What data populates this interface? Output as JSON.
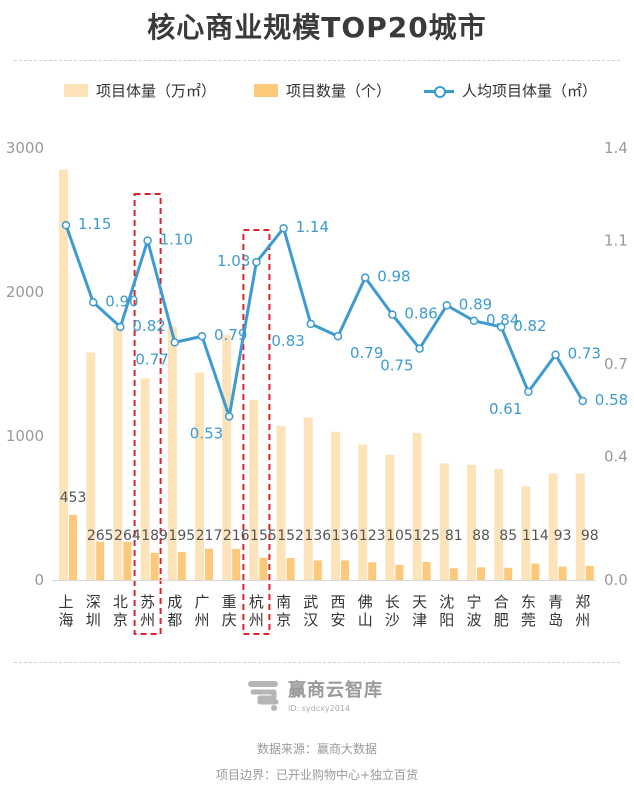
{
  "title": "核心商业规模TOP20城市",
  "legend": {
    "area_label": "项目体量（万㎡）",
    "count_label": "项目数量（个）",
    "per_capita_label": "人均项目体量（㎡）"
  },
  "colors": {
    "area_bar": "#fde3b9",
    "count_bar": "#fcc97a",
    "line": "#3e9bd1",
    "highlight_box": "#d8262e",
    "axis_text": "#999999"
  },
  "chart_data": {
    "type": "bar",
    "title": "核心商业规模TOP20城市",
    "categories": [
      "上海",
      "深圳",
      "北京",
      "苏州",
      "成都",
      "广州",
      "重庆",
      "杭州",
      "南京",
      "武汉",
      "西安",
      "佛山",
      "长沙",
      "天津",
      "沈阳",
      "宁波",
      "合肥",
      "东莞",
      "青岛",
      "郑州"
    ],
    "series": [
      {
        "name": "项目体量（万㎡）",
        "type": "bar",
        "axis": "left",
        "values": [
          2850,
          1580,
          1760,
          1400,
          1760,
          1440,
          1700,
          1250,
          1070,
          1130,
          1030,
          940,
          870,
          1020,
          810,
          800,
          770,
          650,
          740,
          740
        ]
      },
      {
        "name": "项目数量（个）",
        "type": "bar",
        "axis": "left",
        "values": [
          453,
          265,
          264,
          189,
          195,
          217,
          216,
          155,
          152,
          136,
          136,
          123,
          105,
          125,
          81,
          88,
          85,
          114,
          93,
          98
        ]
      },
      {
        "name": "人均项目体量（㎡）",
        "type": "line",
        "axis": "right",
        "values": [
          1.15,
          0.9,
          0.82,
          1.1,
          0.77,
          0.79,
          0.53,
          1.03,
          1.14,
          0.83,
          0.79,
          0.98,
          0.86,
          0.75,
          0.89,
          0.84,
          0.82,
          0.61,
          0.73,
          0.58
        ]
      }
    ],
    "left_axis": {
      "ylim": [
        0,
        3000
      ],
      "ticks": [
        "0",
        "1000",
        "2000",
        "3000"
      ]
    },
    "right_axis": {
      "ylim": [
        0,
        1.4
      ],
      "ticks": [
        "0.0",
        "0.4",
        "0.7",
        "1.1",
        "1.4"
      ]
    },
    "highlighted_categories": [
      "苏州",
      "杭州"
    ],
    "legend_position": "top",
    "grid": false
  },
  "watermark": {
    "name": "赢商云智库",
    "id": "ID: sydcxy2014"
  },
  "footer": {
    "source": "数据来源：赢商大数据",
    "scope": "项目边界：已开业购物中心+独立百货"
  }
}
